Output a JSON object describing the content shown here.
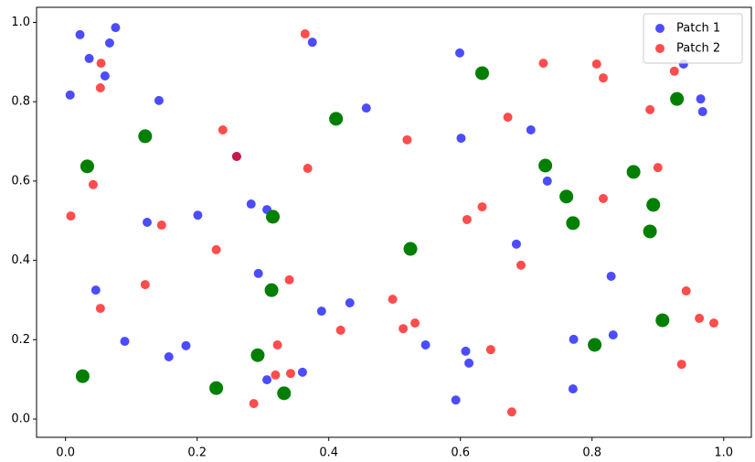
{
  "chart_data": {
    "type": "scatter",
    "xlim": [
      -0.044,
      1.042
    ],
    "ylim": [
      -0.046,
      1.038
    ],
    "xticks": [
      {
        "value": 0,
        "label": "0.0"
      },
      0.2,
      0.4,
      0.6,
      0.8,
      {
        "value": 1,
        "label": "1.0"
      }
    ],
    "yticks": [
      {
        "value": 0,
        "label": "0.0"
      },
      0.2,
      0.4,
      0.6,
      0.8,
      {
        "value": 1,
        "label": "1.0"
      }
    ],
    "grid": false,
    "legend": "upper right",
    "series": [
      {
        "name": "Patch 1",
        "color": "#0000ff",
        "x": [
          0.007,
          0.022,
          0.036,
          0.076,
          0.067,
          0.06,
          0.142,
          0.124,
          0.201,
          0.26,
          0.282,
          0.306,
          0.293,
          0.375,
          0.457,
          0.046,
          0.09,
          0.157,
          0.183,
          0.306,
          0.36,
          0.389,
          0.432,
          0.547,
          0.599,
          0.601,
          0.707,
          0.732,
          0.685,
          0.608,
          0.613,
          0.593,
          0.772,
          0.771,
          0.829,
          0.832,
          0.939,
          0.965,
          0.968
        ],
        "values": [
          0.817,
          0.969,
          0.909,
          0.987,
          0.948,
          0.865,
          0.803,
          0.496,
          0.514,
          0.662,
          0.542,
          0.528,
          0.367,
          0.95,
          0.784,
          0.325,
          0.196,
          0.157,
          0.185,
          0.099,
          0.118,
          0.272,
          0.293,
          0.187,
          0.923,
          0.708,
          0.729,
          0.6,
          0.441,
          0.171,
          0.141,
          0.048,
          0.201,
          0.076,
          0.36,
          0.212,
          0.895,
          0.807,
          0.775
        ]
      },
      {
        "name": "Patch 2",
        "color": "#ff0000",
        "x": [
          0.008,
          0.054,
          0.053,
          0.042,
          0.053,
          0.121,
          0.146,
          0.239,
          0.26,
          0.229,
          0.364,
          0.368,
          0.34,
          0.322,
          0.319,
          0.342,
          0.286,
          0.418,
          0.519,
          0.497,
          0.513,
          0.531,
          0.61,
          0.633,
          0.672,
          0.646,
          0.692,
          0.678,
          0.726,
          0.807,
          0.817,
          0.817,
          0.888,
          0.9,
          0.925,
          0.943,
          0.963,
          0.985,
          0.936
        ],
        "values": [
          0.512,
          0.897,
          0.835,
          0.591,
          0.279,
          0.339,
          0.489,
          0.729,
          0.662,
          0.427,
          0.971,
          0.632,
          0.351,
          0.187,
          0.111,
          0.115,
          0.039,
          0.224,
          0.704,
          0.302,
          0.228,
          0.242,
          0.503,
          0.535,
          0.761,
          0.175,
          0.388,
          0.018,
          0.897,
          0.895,
          0.86,
          0.556,
          0.78,
          0.634,
          0.877,
          0.323,
          0.254,
          0.242,
          0.138
        ]
      },
      {
        "color": "#007f00",
        "x": [
          0.033,
          0.026,
          0.121,
          0.229,
          0.292,
          0.313,
          0.315,
          0.332,
          0.411,
          0.524,
          0.633,
          0.729,
          0.761,
          0.771,
          0.804,
          0.863,
          0.888,
          0.893,
          0.907,
          0.929
        ],
        "values": [
          0.637,
          0.108,
          0.713,
          0.078,
          0.161,
          0.325,
          0.51,
          0.065,
          0.757,
          0.429,
          0.872,
          0.639,
          0.561,
          0.494,
          0.187,
          0.623,
          0.473,
          0.54,
          0.249,
          0.807
        ]
      }
    ]
  }
}
